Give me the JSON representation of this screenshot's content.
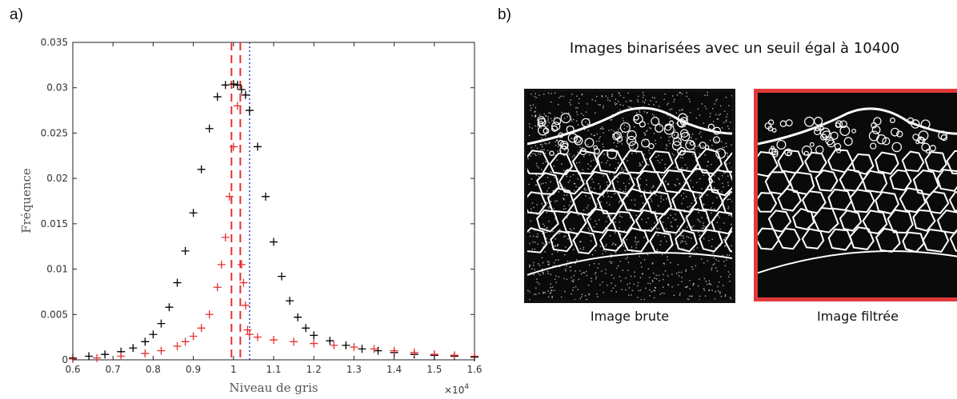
{
  "panel_a_label": "a)",
  "panel_b_label": "b)",
  "chart_data": {
    "type": "scatter",
    "title": "",
    "xlabel": "Niveau de gris",
    "ylabel": "Fréquence",
    "x_multiplier": "×10",
    "x_multiplier_exp": "4",
    "xlim": [
      0.6,
      1.6
    ],
    "ylim": [
      0,
      0.035
    ],
    "xticks": [
      "0.6",
      "0.7",
      "0.8",
      "0.9",
      "1",
      "1.1",
      "1.2",
      "1.3",
      "1.4",
      "1.5",
      "1.6"
    ],
    "yticks": [
      "0",
      "0.005",
      "0.01",
      "0.015",
      "0.02",
      "0.025",
      "0.03",
      "0.035"
    ],
    "grid": false,
    "series": [
      {
        "color": "#000000",
        "marker": "+",
        "x": [
          0.6,
          0.64,
          0.68,
          0.72,
          0.75,
          0.78,
          0.8,
          0.82,
          0.84,
          0.86,
          0.88,
          0.9,
          0.92,
          0.94,
          0.96,
          0.98,
          1.0,
          1.01,
          1.02,
          1.03,
          1.04,
          1.06,
          1.08,
          1.1,
          1.12,
          1.14,
          1.16,
          1.18,
          1.2,
          1.24,
          1.28,
          1.32,
          1.36,
          1.4,
          1.45,
          1.5,
          1.55,
          1.6
        ],
        "y": [
          0.0002,
          0.0004,
          0.0006,
          0.0009,
          0.0013,
          0.002,
          0.0028,
          0.004,
          0.0058,
          0.0085,
          0.012,
          0.0162,
          0.021,
          0.0255,
          0.029,
          0.0303,
          0.0304,
          0.0303,
          0.0298,
          0.0292,
          0.0275,
          0.0235,
          0.018,
          0.013,
          0.0092,
          0.0065,
          0.0047,
          0.0035,
          0.0027,
          0.0021,
          0.0016,
          0.0012,
          0.001,
          0.0008,
          0.0006,
          0.0005,
          0.0004,
          0.0003
        ]
      },
      {
        "color": "#e53030",
        "marker": "+",
        "x": [
          0.6,
          0.66,
          0.72,
          0.78,
          0.82,
          0.86,
          0.88,
          0.9,
          0.92,
          0.94,
          0.96,
          0.97,
          0.98,
          0.99,
          1.0,
          1.01,
          1.02,
          1.025,
          1.03,
          1.035,
          1.04,
          1.06,
          1.1,
          1.15,
          1.2,
          1.25,
          1.3,
          1.35,
          1.4,
          1.45,
          1.5,
          1.55,
          1.6
        ],
        "y": [
          0.0001,
          0.0002,
          0.0004,
          0.0007,
          0.001,
          0.0015,
          0.002,
          0.0026,
          0.0035,
          0.005,
          0.008,
          0.0105,
          0.0135,
          0.018,
          0.0235,
          0.028,
          0.0105,
          0.0085,
          0.006,
          0.0033,
          0.0028,
          0.0025,
          0.0022,
          0.002,
          0.0018,
          0.0016,
          0.0014,
          0.0012,
          0.001,
          0.0008,
          0.0006,
          0.0005,
          0.0004
        ]
      }
    ],
    "vlines": [
      {
        "x": 0.995,
        "color": "#e53030",
        "style": "dashed"
      },
      {
        "x": 1.017,
        "color": "#e53030",
        "style": "dashed"
      },
      {
        "x": 1.04,
        "color": "#2b3fd6",
        "style": "dotted"
      }
    ]
  },
  "right_panel": {
    "title": "Images binarisées avec un seuil égal à 10400",
    "images": [
      {
        "caption": "Image brute",
        "border_color": "#111111"
      },
      {
        "caption": "Image filtrée",
        "border_color": "#e03a3a"
      }
    ]
  }
}
